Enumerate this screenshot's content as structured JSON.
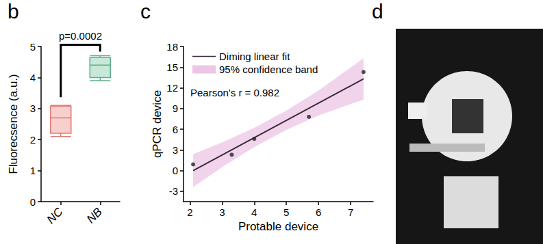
{
  "chart_data": [
    {
      "type": "boxplot",
      "title": "b",
      "categories": [
        "NC",
        "NB"
      ],
      "values": [
        [
          2.1,
          2.2,
          2.7,
          3.08,
          3.1
        ],
        [
          3.9,
          4.0,
          4.4,
          4.65,
          4.7
        ]
      ],
      "colors": [
        "#f7cfcc",
        "#c8e8d9"
      ],
      "ylabel": "Fluorecsence (a.u.)",
      "ylim": [
        0,
        5
      ],
      "yticks": [
        0,
        1,
        2,
        3,
        4,
        5
      ],
      "annotations": [
        "p=0.0002"
      ]
    },
    {
      "type": "scatter",
      "title": "c",
      "x": [
        2.1,
        3.3,
        4.0,
        5.7,
        7.4
      ],
      "values": [
        0.9,
        2.3,
        4.6,
        7.8,
        14.3
      ],
      "color": "#222222",
      "fit": {
        "name": "Diming linear fit",
        "x": [
          2.1,
          7.4
        ],
        "values": [
          0,
          13.3
        ],
        "color": "#3b2b3b"
      },
      "band": {
        "name": "95% confidence band",
        "x": [
          2.1,
          3,
          4,
          5,
          6,
          7.4
        ],
        "lower": [
          -2.4,
          0.5,
          3.4,
          5.9,
          8.0,
          10.3
        ],
        "upper": [
          2.4,
          4.1,
          6.2,
          8.7,
          11.6,
          16.3
        ],
        "color": "#ecc6e4"
      },
      "xlabel": "Protable device",
      "ylabel": "qPCR device",
      "xlim": [
        1.8,
        7.7
      ],
      "xticks": [
        2,
        3,
        4,
        5,
        6,
        7
      ],
      "ylim": [
        -4.5,
        18
      ],
      "yticks": [
        -3,
        0,
        3,
        6,
        9,
        12,
        15,
        18
      ],
      "legend": "upper left",
      "annotations": [
        "Pearson's r = 0.982"
      ]
    },
    {
      "type": "image",
      "title": "d"
    }
  ]
}
